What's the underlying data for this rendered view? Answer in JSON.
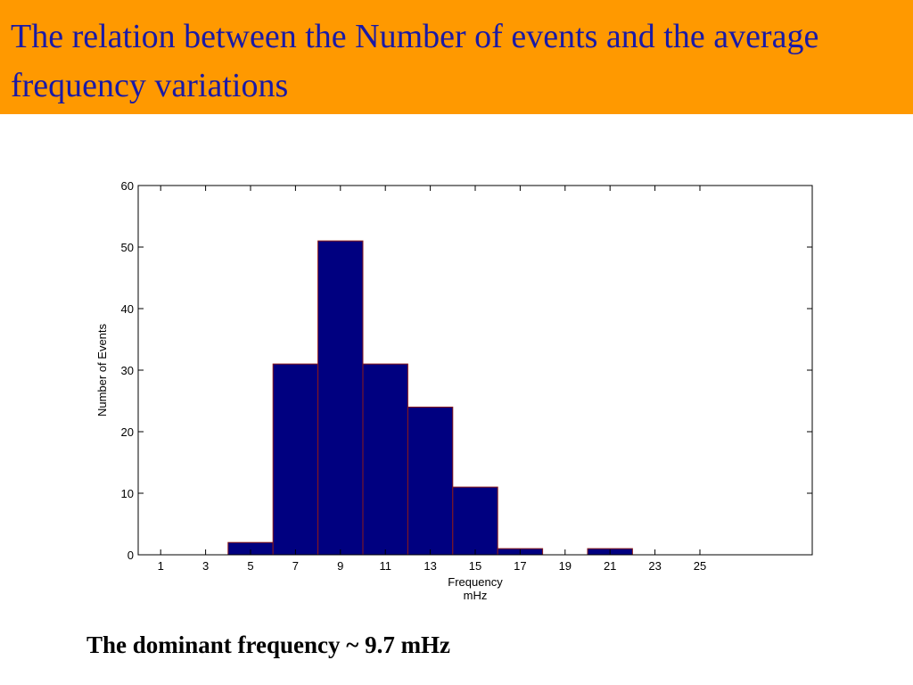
{
  "slide": {
    "title": "The relation between the Number of events and the average frequency variations",
    "caption": "The dominant frequency ~ 9.7 mHz"
  },
  "chart_data": {
    "type": "bar",
    "categories": [
      "4-6",
      "6-8",
      "8-10",
      "10-12",
      "12-14",
      "14-16",
      "16-18",
      "18-20",
      "20-22"
    ],
    "x": [
      5,
      7,
      9,
      11,
      13,
      15,
      17,
      19,
      21
    ],
    "values": [
      2,
      31,
      51,
      31,
      24,
      11,
      1,
      0,
      1
    ],
    "bin_width": 2,
    "xlabel": "Frequency mHz",
    "xlabel_lines": [
      "Frequency",
      "mHz"
    ],
    "ylabel": "Number of Events",
    "xlim": [
      0,
      30
    ],
    "ylim": [
      0,
      60
    ],
    "x_ticks": [
      1,
      3,
      5,
      7,
      9,
      11,
      13,
      15,
      17,
      19,
      21,
      23,
      25
    ],
    "y_ticks": [
      0,
      10,
      20,
      30,
      40,
      50,
      60
    ],
    "grid": false,
    "bar_color": "#000080",
    "bar_edge_color": "#8b1a1a"
  }
}
